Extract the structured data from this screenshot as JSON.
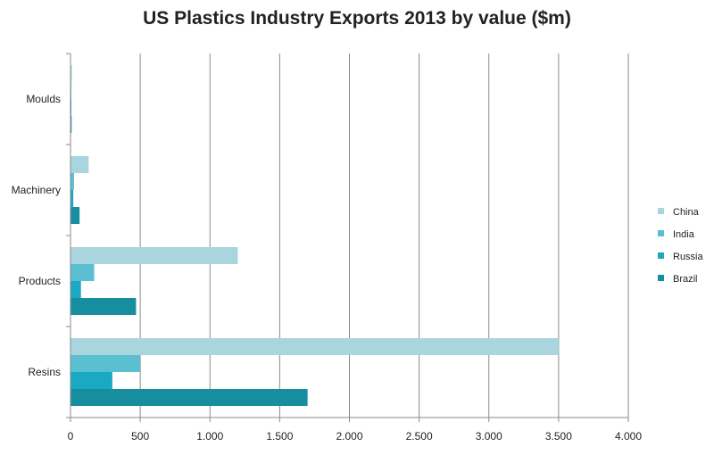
{
  "chart_data": {
    "type": "bar",
    "orientation": "horizontal",
    "title": "US Plastics Industry Exports 2013 by value ($m)",
    "categories": [
      "Moulds",
      "Machinery",
      "Products",
      "Resins"
    ],
    "series": [
      {
        "name": "China",
        "color": "#a9d5df",
        "values": [
          10,
          130,
          1200,
          3500
        ]
      },
      {
        "name": "India",
        "color": "#5bbfd2",
        "values": [
          5,
          25,
          170,
          500
        ]
      },
      {
        "name": "Russia",
        "color": "#1aa9c1",
        "values": [
          3,
          20,
          75,
          300
        ]
      },
      {
        "name": "Brazil",
        "color": "#178e9f",
        "values": [
          8,
          65,
          470,
          1700
        ]
      }
    ],
    "xlim": [
      0,
      4000
    ],
    "ticks": [
      "0",
      "500",
      "1.000",
      "1.500",
      "2.000",
      "2.500",
      "3.000",
      "3.500",
      "4.000"
    ],
    "grid": "vertical",
    "legend_position": "right"
  }
}
